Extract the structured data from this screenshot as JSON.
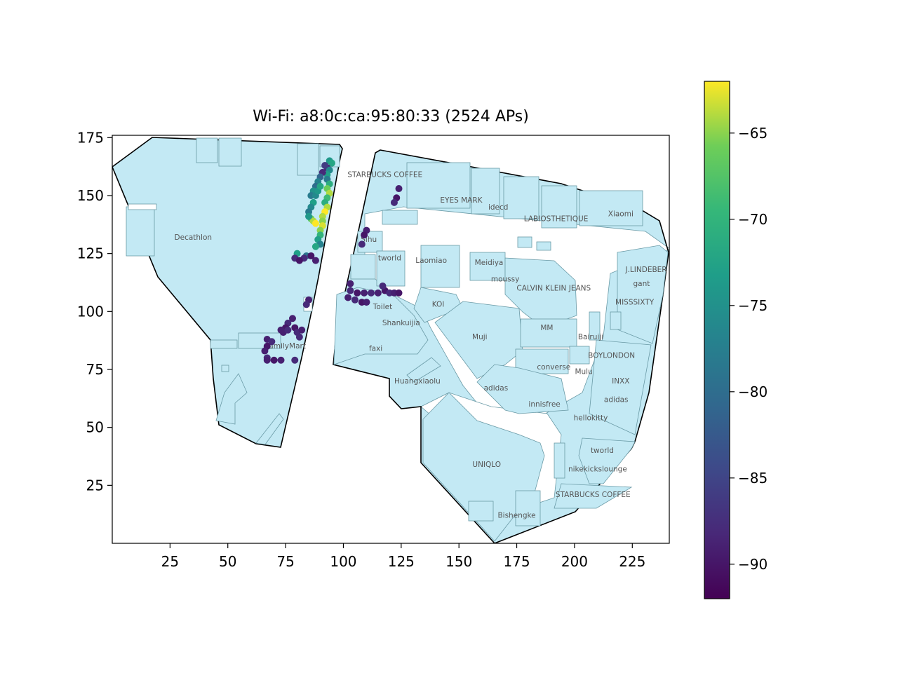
{
  "chart_data": {
    "type": "scatter",
    "title": "Wi-Fi: a8:0c:ca:95:80:33 (2524 APs)",
    "xlabel": "",
    "ylabel": "",
    "xlim": [
      0,
      241
    ],
    "ylim": [
      0,
      176
    ],
    "x_ticks": [
      25,
      50,
      75,
      100,
      125,
      150,
      175,
      200,
      225
    ],
    "y_ticks": [
      25,
      50,
      75,
      100,
      125,
      150,
      175
    ],
    "colorbar": {
      "colormap": "viridis",
      "range": [
        -92,
        -62
      ],
      "ticks": [
        -65,
        -70,
        -75,
        -80,
        -85,
        -90
      ]
    },
    "shop_labels": [
      {
        "text": "STARBUCKS COFFEE",
        "x": 118,
        "y": 158
      },
      {
        "text": "EYES MARK",
        "x": 151,
        "y": 147
      },
      {
        "text": "idecd",
        "x": 167,
        "y": 144
      },
      {
        "text": "LABIOSTHETIQUE",
        "x": 192,
        "y": 139
      },
      {
        "text": "Xiaomi",
        "x": 220,
        "y": 141
      },
      {
        "text": "Decathlon",
        "x": 35,
        "y": 131
      },
      {
        "text": "Sihu",
        "x": 111,
        "y": 130
      },
      {
        "text": "tworld",
        "x": 120,
        "y": 122
      },
      {
        "text": "Laomiao",
        "x": 138,
        "y": 121
      },
      {
        "text": "Meidiya",
        "x": 163,
        "y": 120
      },
      {
        "text": "moussy",
        "x": 170,
        "y": 113
      },
      {
        "text": "CALVIN KLEIN JEANS",
        "x": 191,
        "y": 109
      },
      {
        "text": "J.LINDEBER",
        "x": 231,
        "y": 117
      },
      {
        "text": "gant",
        "x": 229,
        "y": 111
      },
      {
        "text": "MISSSIXTY",
        "x": 226,
        "y": 103
      },
      {
        "text": "KOI",
        "x": 141,
        "y": 102
      },
      {
        "text": "Toilet",
        "x": 117,
        "y": 101
      },
      {
        "text": "Shankuijia",
        "x": 125,
        "y": 94
      },
      {
        "text": "MM",
        "x": 188,
        "y": 92
      },
      {
        "text": "Muji",
        "x": 159,
        "y": 88
      },
      {
        "text": "Bairuiji",
        "x": 207,
        "y": 88
      },
      {
        "text": "FamilyMart",
        "x": 75,
        "y": 84
      },
      {
        "text": "faxi",
        "x": 114,
        "y": 83
      },
      {
        "text": "BOYLONDON",
        "x": 216,
        "y": 80
      },
      {
        "text": "converse",
        "x": 191,
        "y": 75
      },
      {
        "text": "Mulu",
        "x": 204,
        "y": 73
      },
      {
        "text": "INXX",
        "x": 220,
        "y": 69
      },
      {
        "text": "Huangxiaolu",
        "x": 132,
        "y": 69
      },
      {
        "text": "adidas",
        "x": 166,
        "y": 66
      },
      {
        "text": "adidas",
        "x": 218,
        "y": 61
      },
      {
        "text": "innisfree",
        "x": 187,
        "y": 59
      },
      {
        "text": "hellokitty",
        "x": 207,
        "y": 53
      },
      {
        "text": "tworld",
        "x": 212,
        "y": 39
      },
      {
        "text": "UNIQLO",
        "x": 162,
        "y": 33
      },
      {
        "text": "nikekickslounge",
        "x": 210,
        "y": 31
      },
      {
        "text": "STARBUCKS COFFEE",
        "x": 208,
        "y": 20
      },
      {
        "text": "Bishengke",
        "x": 175,
        "y": 11
      }
    ],
    "points": [
      [
        94,
        165,
        -74
      ],
      [
        95,
        164,
        -72
      ],
      [
        93,
        162,
        -88
      ],
      [
        94,
        161,
        -76
      ],
      [
        93,
        159,
        -73
      ],
      [
        93,
        157,
        -78
      ],
      [
        94,
        155,
        -71
      ],
      [
        93,
        153,
        -66
      ],
      [
        94,
        151,
        -64
      ],
      [
        93,
        149,
        -69
      ],
      [
        92,
        147,
        -71
      ],
      [
        93,
        145,
        -64
      ],
      [
        92,
        143,
        -62
      ],
      [
        91,
        141,
        -64
      ],
      [
        91,
        139,
        -65
      ],
      [
        91,
        137,
        -63
      ],
      [
        90,
        135,
        -65
      ],
      [
        90,
        133,
        -70
      ],
      [
        89,
        131,
        -73
      ],
      [
        90,
        129,
        -77
      ],
      [
        88,
        128,
        -72
      ],
      [
        92,
        163,
        -86
      ],
      [
        91,
        160,
        -88
      ],
      [
        90,
        158,
        -81
      ],
      [
        89,
        156,
        -77
      ],
      [
        88,
        154,
        -80
      ],
      [
        87,
        152,
        -75
      ],
      [
        86,
        150,
        -78
      ],
      [
        88,
        150,
        -76
      ],
      [
        89,
        152,
        -74
      ],
      [
        90,
        154,
        -72
      ],
      [
        87,
        147,
        -73
      ],
      [
        86,
        145,
        -76
      ],
      [
        85,
        143,
        -78
      ],
      [
        86,
        140,
        -67
      ],
      [
        87,
        139,
        -64
      ],
      [
        88,
        138,
        -62
      ],
      [
        85,
        141,
        -74
      ],
      [
        84,
        124,
        -79
      ],
      [
        80,
        125,
        -73
      ],
      [
        79,
        123,
        -88
      ],
      [
        83,
        123,
        -88
      ],
      [
        86,
        124,
        -90
      ],
      [
        88,
        122,
        -89
      ],
      [
        81,
        122,
        -90
      ],
      [
        85,
        105,
        -89
      ],
      [
        84,
        103,
        -88
      ],
      [
        78,
        97,
        -89
      ],
      [
        76,
        95,
        -88
      ],
      [
        75,
        93,
        -90
      ],
      [
        74,
        91,
        -89
      ],
      [
        76,
        92,
        -88
      ],
      [
        79,
        93,
        -90
      ],
      [
        80,
        91,
        -88
      ],
      [
        82,
        92,
        -89
      ],
      [
        81,
        89,
        -88
      ],
      [
        73,
        92,
        -89
      ],
      [
        67,
        88,
        -89
      ],
      [
        69,
        87,
        -88
      ],
      [
        67,
        85,
        -90
      ],
      [
        66,
        83,
        -89
      ],
      [
        67,
        80,
        -88
      ],
      [
        67,
        79,
        -89
      ],
      [
        70,
        79,
        -90
      ],
      [
        73,
        79,
        -89
      ],
      [
        79,
        79,
        -88
      ],
      [
        110,
        135,
        -89
      ],
      [
        109,
        133,
        -90
      ],
      [
        108,
        129,
        -88
      ],
      [
        124,
        153,
        -89
      ],
      [
        123,
        149,
        -90
      ],
      [
        122,
        147,
        -88
      ],
      [
        103,
        112,
        -89
      ],
      [
        103,
        109,
        -88
      ],
      [
        106,
        108,
        -90
      ],
      [
        109,
        108,
        -89
      ],
      [
        112,
        108,
        -88
      ],
      [
        115,
        108,
        -89
      ],
      [
        118,
        109,
        -90
      ],
      [
        120,
        108,
        -88
      ],
      [
        122,
        108,
        -89
      ],
      [
        124,
        108,
        -90
      ],
      [
        117,
        111,
        -88
      ],
      [
        102,
        106,
        -89
      ],
      [
        105,
        105,
        -88
      ],
      [
        108,
        104,
        -90
      ],
      [
        110,
        104,
        -89
      ]
    ]
  }
}
